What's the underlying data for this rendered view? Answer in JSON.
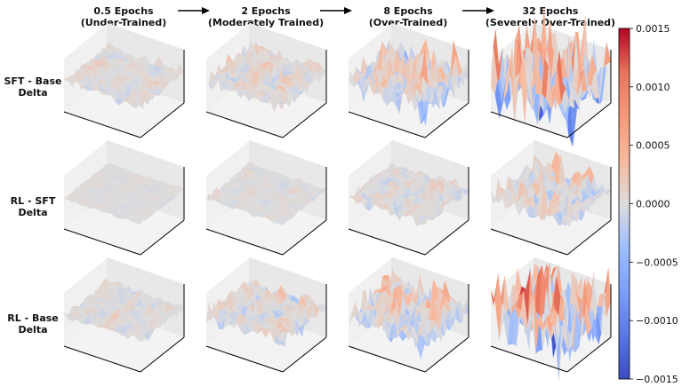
{
  "chart_data": {
    "type": "surface-grid",
    "columns": [
      {
        "line1": "0.5 Epochs",
        "line2": "(Under-Trained)",
        "amplitude": 0.00015
      },
      {
        "line1": "2 Epochs",
        "line2": "(Moderately Trained)",
        "amplitude": 0.00025
      },
      {
        "line1": "8 Epochs",
        "line2": "(Over-Trained)",
        "amplitude": 0.00055
      },
      {
        "line1": "32 Epochs",
        "line2": "(Severely Over-Trained)",
        "amplitude": 0.0011
      }
    ],
    "rows": [
      {
        "line1": "SFT - Base",
        "line2": "Delta",
        "scale": 1.0
      },
      {
        "line1": "RL - SFT",
        "line2": "Delta",
        "scale": 0.35
      },
      {
        "line1": "RL - Base",
        "line2": "Delta",
        "scale": 1.0
      }
    ],
    "colorbar": {
      "colormap": "coolwarm",
      "vmin": -0.0015,
      "vmax": 0.0015,
      "ticks": [
        "0.0015",
        "0.0010",
        "0.0005",
        "0.0000",
        "−0.0005",
        "−0.0010",
        "−0.0015"
      ],
      "tick_values": [
        0.0015,
        0.001,
        0.0005,
        0,
        -0.0005,
        -0.001,
        -0.0015
      ]
    },
    "colors": {
      "cool_end": "#3b4cc0",
      "neutral": "#dddddd",
      "warm_end": "#b40426",
      "arrow": "#000000"
    }
  }
}
